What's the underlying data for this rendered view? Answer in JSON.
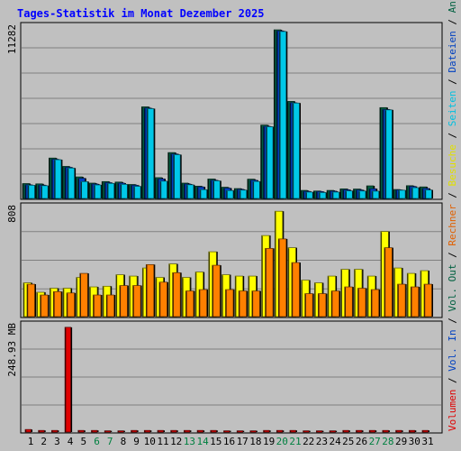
{
  "title": "Tages-Statistik im Monat Dezember 2025",
  "side_label": [
    {
      "text": "Volumen",
      "color": "#e00000"
    },
    {
      "text": " / ",
      "color": "#000000"
    },
    {
      "text": "Vol. In",
      "color": "#0040c0"
    },
    {
      "text": " / ",
      "color": "#000000"
    },
    {
      "text": "Vol. Out",
      "color": "#006040"
    },
    {
      "text": " / ",
      "color": "#000000"
    },
    {
      "text": "Rechner",
      "color": "#e06000"
    },
    {
      "text": " / ",
      "color": "#000000"
    },
    {
      "text": "Besuche",
      "color": "#e0e000"
    },
    {
      "text": " / ",
      "color": "#000000"
    },
    {
      "text": "Seiten",
      "color": "#00c0e0"
    },
    {
      "text": " / ",
      "color": "#000000"
    },
    {
      "text": "Dateien",
      "color": "#0040c0"
    },
    {
      "text": " / ",
      "color": "#000000"
    },
    {
      "text": "Anfragen",
      "color": "#006040"
    }
  ],
  "colors": {
    "background": "#c0c0c0",
    "grid": "#808080",
    "title": "#0000ff",
    "weekday": "#000000",
    "weekend": "#008040",
    "anfragen": "#006040",
    "dateien": "#0040c0",
    "seiten": "#00c8e8",
    "besuche": "#ffff00",
    "rechner": "#ff8000",
    "volumen": "#e00000"
  },
  "chart_data": [
    {
      "type": "bar",
      "panel": "top",
      "ylabel": "11282",
      "ylim": [
        0,
        11282
      ],
      "categories": [
        "1",
        "2",
        "3",
        "4",
        "5",
        "6",
        "7",
        "8",
        "9",
        "10",
        "11",
        "12",
        "13",
        "14",
        "15",
        "16",
        "17",
        "18",
        "19",
        "20",
        "21",
        "22",
        "23",
        "24",
        "25",
        "26",
        "27",
        "28",
        "29",
        "30",
        "31"
      ],
      "weekend_days": [
        6,
        7,
        13,
        14,
        20,
        21,
        27,
        28
      ],
      "series": [
        {
          "key": "anfragen",
          "values": [
            980,
            960,
            2660,
            2110,
            1420,
            1010,
            1110,
            1080,
            920,
            6030,
            1370,
            3020,
            1010,
            810,
            1280,
            740,
            650,
            1270,
            4830,
            11100,
            6390,
            530,
            490,
            530,
            630,
            620,
            830,
            5980,
            590,
            840,
            760
          ]
        },
        {
          "key": "dateien",
          "values": [
            900,
            880,
            2580,
            2050,
            1330,
            950,
            1040,
            1010,
            870,
            5950,
            1290,
            2930,
            950,
            760,
            1200,
            680,
            600,
            1200,
            4750,
            11030,
            6300,
            470,
            450,
            480,
            570,
            560,
            640,
            5860,
            560,
            790,
            660
          ]
        },
        {
          "key": "seiten",
          "values": [
            870,
            840,
            2550,
            2000,
            1110,
            890,
            990,
            930,
            800,
            5910,
            1140,
            2880,
            900,
            580,
            1160,
            520,
            550,
            1120,
            4720,
            10990,
            6280,
            420,
            390,
            420,
            500,
            490,
            480,
            5830,
            540,
            710,
            560
          ]
        }
      ]
    },
    {
      "type": "bar",
      "panel": "middle",
      "ylabel": "808",
      "ylim": [
        0,
        808
      ],
      "categories": [
        "1",
        "2",
        "3",
        "4",
        "5",
        "6",
        "7",
        "8",
        "9",
        "10",
        "11",
        "12",
        "13",
        "14",
        "15",
        "16",
        "17",
        "18",
        "19",
        "20",
        "21",
        "22",
        "23",
        "24",
        "25",
        "26",
        "27",
        "28",
        "29",
        "30",
        "31"
      ],
      "series": [
        {
          "key": "besuche",
          "values": [
            250,
            180,
            210,
            210,
            290,
            220,
            225,
            310,
            300,
            360,
            290,
            390,
            290,
            330,
            480,
            310,
            300,
            300,
            600,
            780,
            510,
            270,
            250,
            300,
            350,
            350,
            300,
            630,
            360,
            320,
            340
          ]
        },
        {
          "key": "rechner",
          "values": [
            240,
            160,
            185,
            175,
            320,
            160,
            160,
            230,
            230,
            385,
            255,
            325,
            190,
            200,
            380,
            200,
            190,
            190,
            505,
            575,
            400,
            170,
            170,
            190,
            220,
            210,
            200,
            510,
            240,
            220,
            240
          ]
        }
      ]
    },
    {
      "type": "bar",
      "panel": "bottom",
      "ylabel": "248.93 MB",
      "ylim": [
        0,
        248.93
      ],
      "categories": [
        "1",
        "2",
        "3",
        "4",
        "5",
        "6",
        "7",
        "8",
        "9",
        "10",
        "11",
        "12",
        "13",
        "14",
        "15",
        "16",
        "17",
        "18",
        "19",
        "20",
        "21",
        "22",
        "23",
        "24",
        "25",
        "26",
        "27",
        "28",
        "29",
        "30",
        "31"
      ],
      "series": [
        {
          "key": "volumen",
          "values": [
            6.0,
            3.8,
            3.8,
            245,
            3.8,
            3.8,
            2.9,
            2.9,
            3.8,
            3.8,
            3.8,
            3.8,
            3.8,
            3.8,
            3.8,
            2.9,
            2.9,
            2.9,
            3.8,
            3.8,
            3.8,
            2.9,
            2.9,
            2.9,
            3.8,
            3.8,
            3.8,
            3.8,
            3.8,
            3.8,
            3.8
          ]
        }
      ]
    }
  ]
}
